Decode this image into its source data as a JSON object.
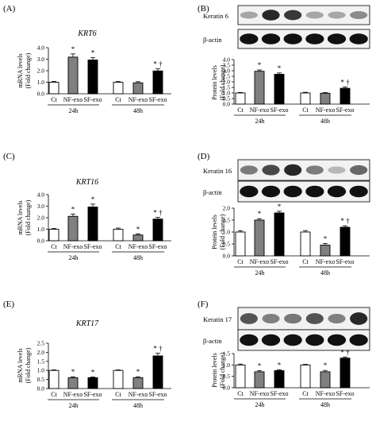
{
  "figure": {
    "ylabel_mrna": "mRNA levels (Fold change)",
    "ylabel_protein": "Protein levels (Fold change)",
    "loading_control": "β-actin",
    "group_labels": [
      "24h",
      "48h"
    ],
    "colors": {
      "Ct": "#ffffff",
      "NF-exo": "#808080",
      "SF-exo": "#000000"
    }
  },
  "chart_data": [
    {
      "panel_label": "(A)",
      "type": "bar",
      "title": "KRT6",
      "ylabel": "mRNA levels (Fold change)",
      "ylim": [
        0,
        4.0
      ],
      "yticks": [
        "0.0",
        "1.0",
        "2.0",
        "3.0",
        "4.0"
      ],
      "categories": [
        "Ct",
        "NF-exo",
        "SF-exo",
        "Ct",
        "NF-exo",
        "SF-exo"
      ],
      "groups": [
        "24h",
        "48h"
      ],
      "values": [
        1.0,
        3.18,
        2.93,
        1.0,
        0.95,
        1.98
      ],
      "errors": [
        0.07,
        0.28,
        0.22,
        0.06,
        0.1,
        0.18
      ],
      "marks": [
        "",
        "*",
        "*",
        "",
        "",
        "* †"
      ]
    },
    {
      "panel_label": "(B)",
      "type": "bar",
      "blot_target": "Keratin 6",
      "ylabel": "Protein levels (Fold change)",
      "ylim": [
        0,
        4.0
      ],
      "yticks": [
        "0.0",
        "0.5",
        "1.0",
        "1.5",
        "2.0",
        "2.5",
        "3.0",
        "3.5",
        "4.0"
      ],
      "categories": [
        "Ct",
        "NF-exo",
        "SF-exo",
        "Ct",
        "NF-exo",
        "SF-exo"
      ],
      "groups": [
        "24h",
        "48h"
      ],
      "values": [
        1.0,
        2.95,
        2.68,
        1.0,
        0.98,
        1.42
      ],
      "errors": [
        0.05,
        0.12,
        0.12,
        0.06,
        0.06,
        0.12
      ],
      "marks": [
        "",
        "*",
        "*",
        "",
        "",
        "* †"
      ]
    },
    {
      "panel_label": "(C)",
      "type": "bar",
      "title": "KRT16",
      "ylabel": "mRNA levels (Fold change)",
      "ylim": [
        0,
        4.0
      ],
      "yticks": [
        "0.0",
        "1.0",
        "2.0",
        "3.0",
        "4.0"
      ],
      "categories": [
        "Ct",
        "NF-exo",
        "SF-exo",
        "Ct",
        "NF-exo",
        "SF-exo"
      ],
      "groups": [
        "24h",
        "48h"
      ],
      "values": [
        1.0,
        2.12,
        2.93,
        1.0,
        0.5,
        1.88
      ],
      "errors": [
        0.07,
        0.2,
        0.25,
        0.1,
        0.1,
        0.15
      ],
      "marks": [
        "",
        "*",
        "*",
        "",
        "*",
        "* †"
      ]
    },
    {
      "panel_label": "(D)",
      "type": "bar",
      "blot_target": "Keratin 16",
      "ylabel": "Protein levels (Fold change)",
      "ylim": [
        0,
        2.0
      ],
      "yticks": [
        "0.0",
        "0.5",
        "1.0",
        "1.5",
        "2.0"
      ],
      "categories": [
        "Ct",
        "NF-exo",
        "SF-exo",
        "Ct",
        "NF-exo",
        "SF-exo"
      ],
      "groups": [
        "24h",
        "48h"
      ],
      "values": [
        1.0,
        1.5,
        1.8,
        1.0,
        0.45,
        1.2
      ],
      "errors": [
        0.05,
        0.06,
        0.07,
        0.06,
        0.07,
        0.06
      ],
      "marks": [
        "",
        "*",
        "*",
        "",
        "*",
        "* †"
      ]
    },
    {
      "panel_label": "(E)",
      "type": "bar",
      "title": "KRT17",
      "ylabel": "mRNA levels (Fold change)",
      "ylim": [
        0,
        2.5
      ],
      "yticks": [
        "0.0",
        "0.5",
        "1.0",
        "1.5",
        "2.0",
        "2.5"
      ],
      "categories": [
        "Ct",
        "NF-exo",
        "SF-exo",
        "Ct",
        "NF-exo",
        "SF-exo"
      ],
      "groups": [
        "24h",
        "48h"
      ],
      "values": [
        1.0,
        0.6,
        0.6,
        1.0,
        0.6,
        1.8
      ],
      "errors": [
        0.03,
        0.05,
        0.04,
        0.03,
        0.05,
        0.15
      ],
      "marks": [
        "",
        "*",
        "*",
        "",
        "*",
        "* †"
      ]
    },
    {
      "panel_label": "(F)",
      "type": "bar",
      "blot_target": "Keratin 17",
      "ylabel": "Protein levels (Fold change)",
      "ylim": [
        0,
        1.5
      ],
      "yticks": [
        "0.0",
        "0.5",
        "1.0",
        "1.5"
      ],
      "categories": [
        "Ct",
        "NF-exo",
        "SF-exo",
        "Ct",
        "NF-exo",
        "SF-exo"
      ],
      "groups": [
        "24h",
        "48h"
      ],
      "values": [
        1.0,
        0.7,
        0.75,
        1.0,
        0.7,
        1.3
      ],
      "errors": [
        0.04,
        0.05,
        0.04,
        0.03,
        0.06,
        0.05
      ],
      "marks": [
        "",
        "*",
        "*",
        "",
        "*",
        "* †"
      ]
    }
  ]
}
